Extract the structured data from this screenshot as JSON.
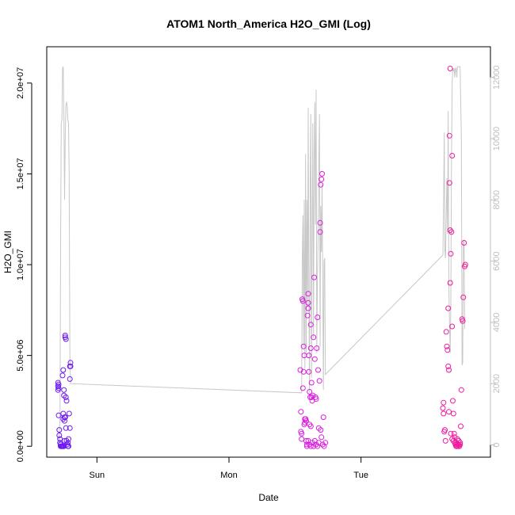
{
  "chart_data": {
    "type": "scatter",
    "title": "ATOM1 North_America H2O_GMI (Log)",
    "xlabel": "Date",
    "ylabel": "H2O_GMI",
    "x_ticks": [
      {
        "label": "Sun",
        "day": 1.0
      },
      {
        "label": "Mon",
        "day": 2.0
      },
      {
        "label": "Tue",
        "day": 3.0
      }
    ],
    "xlim": [
      0.62,
      3.98
    ],
    "ylim": [
      -600000,
      22000000
    ],
    "y_ticks": [
      {
        "value": 0,
        "label": "0.0e+00"
      },
      {
        "value": 5000000,
        "label": "5.0e+06"
      },
      {
        "value": 10000000,
        "label": "1.0e+07"
      },
      {
        "value": 15000000,
        "label": "1.5e+07"
      },
      {
        "value": 20000000,
        "label": "2.0e+07"
      }
    ],
    "y2lim": [
      -400,
      13000
    ],
    "y2_ticks": [
      {
        "value": 0,
        "label": "0"
      },
      {
        "value": 2000,
        "label": "2000"
      },
      {
        "value": 4000,
        "label": "4000"
      },
      {
        "value": 6000,
        "label": "6000"
      },
      {
        "value": 8000,
        "label": "8000"
      },
      {
        "value": 10000,
        "label": "10000"
      },
      {
        "value": 12000,
        "label": "12000"
      }
    ],
    "colors": {
      "line": "#c8c8c8",
      "axis": "#000000",
      "secondary_axis": "#bebebe",
      "point_start": "#6a1af2",
      "point_mid": "#d21ef4",
      "point_end": "#f21a9a"
    },
    "altitude_line": [
      [
        0.71,
        0
      ],
      [
        0.72,
        800
      ],
      [
        0.725,
        6500
      ],
      [
        0.73,
        10500
      ],
      [
        0.735,
        10600
      ],
      [
        0.74,
        12300
      ],
      [
        0.745,
        12350
      ],
      [
        0.75,
        10600
      ],
      [
        0.755,
        8000
      ],
      [
        0.76,
        10000
      ],
      [
        0.765,
        11100
      ],
      [
        0.77,
        11200
      ],
      [
        0.775,
        11050
      ],
      [
        0.78,
        10600
      ],
      [
        0.785,
        10500
      ],
      [
        0.79,
        8800
      ],
      [
        0.795,
        2800
      ],
      [
        0.8,
        2000
      ],
      [
        2.55,
        1700
      ],
      [
        2.555,
        6000
      ],
      [
        2.56,
        7500
      ],
      [
        2.565,
        3200
      ],
      [
        2.57,
        8000
      ],
      [
        2.575,
        2500
      ],
      [
        2.58,
        9500
      ],
      [
        2.585,
        3000
      ],
      [
        2.59,
        8000
      ],
      [
        2.595,
        4500
      ],
      [
        2.6,
        11000
      ],
      [
        2.605,
        5000
      ],
      [
        2.61,
        1700
      ],
      [
        2.615,
        8500
      ],
      [
        2.62,
        10800
      ],
      [
        2.625,
        2200
      ],
      [
        2.63,
        7000
      ],
      [
        2.635,
        10500
      ],
      [
        2.64,
        3500
      ],
      [
        2.645,
        9200
      ],
      [
        2.65,
        11200
      ],
      [
        2.655,
        7200
      ],
      [
        2.66,
        11600
      ],
      [
        2.665,
        3000
      ],
      [
        2.67,
        5500
      ],
      [
        2.675,
        6800
      ],
      [
        2.68,
        9000
      ],
      [
        2.685,
        10800
      ],
      [
        2.69,
        3200
      ],
      [
        2.695,
        7800
      ],
      [
        2.7,
        6300
      ],
      [
        2.705,
        8500
      ],
      [
        2.71,
        5500
      ],
      [
        2.715,
        1800
      ],
      [
        2.72,
        6000
      ],
      [
        2.725,
        6100
      ],
      [
        2.73,
        2300
      ],
      [
        3.62,
        6200
      ],
      [
        3.625,
        7800
      ],
      [
        3.63,
        10200
      ],
      [
        3.635,
        6300
      ],
      [
        3.64,
        6100
      ],
      [
        3.645,
        7500
      ],
      [
        3.65,
        8700
      ],
      [
        3.655,
        6900
      ],
      [
        3.66,
        10900
      ],
      [
        3.665,
        5200
      ],
      [
        3.67,
        4000
      ],
      [
        3.675,
        3000
      ],
      [
        3.68,
        4600
      ],
      [
        3.685,
        9200
      ],
      [
        3.69,
        11800
      ],
      [
        3.695,
        12300
      ],
      [
        3.7,
        12200
      ],
      [
        3.705,
        12300
      ],
      [
        3.71,
        12000
      ],
      [
        3.715,
        12300
      ],
      [
        3.72,
        12300
      ],
      [
        3.725,
        12000
      ],
      [
        3.73,
        12350
      ],
      [
        3.74,
        12350
      ],
      [
        3.75,
        12350
      ],
      [
        3.76,
        10000
      ],
      [
        3.765,
        2600
      ],
      [
        3.77,
        2700
      ],
      [
        3.775,
        6600
      ],
      [
        3.78,
        6700
      ],
      [
        3.785,
        3800
      ]
    ],
    "points": [
      [
        0.705,
        3500000
      ],
      [
        0.705,
        3300000
      ],
      [
        0.705,
        3100000
      ],
      [
        0.71,
        3200000
      ],
      [
        0.71,
        3400000
      ],
      [
        0.71,
        1700000
      ],
      [
        0.715,
        900000
      ],
      [
        0.715,
        600000
      ],
      [
        0.72,
        400000
      ],
      [
        0.72,
        200000
      ],
      [
        0.725,
        100000
      ],
      [
        0.725,
        0
      ],
      [
        0.73,
        0
      ],
      [
        0.735,
        0
      ],
      [
        0.74,
        0
      ],
      [
        0.745,
        0
      ],
      [
        0.75,
        0
      ],
      [
        0.755,
        300000
      ],
      [
        0.74,
        3900000
      ],
      [
        0.745,
        4200000
      ],
      [
        0.745,
        1800000
      ],
      [
        0.75,
        3100000
      ],
      [
        0.75,
        2800000
      ],
      [
        0.755,
        1600000
      ],
      [
        0.755,
        1400000
      ],
      [
        0.76,
        1600000
      ],
      [
        0.76,
        6100000
      ],
      [
        0.76,
        6000000
      ],
      [
        0.765,
        5900000
      ],
      [
        0.765,
        2700000
      ],
      [
        0.77,
        2500000
      ],
      [
        0.765,
        1000000
      ],
      [
        0.77,
        300000
      ],
      [
        0.775,
        100000
      ],
      [
        0.78,
        0
      ],
      [
        0.78,
        200000
      ],
      [
        0.785,
        0
      ],
      [
        0.785,
        400000
      ],
      [
        0.79,
        1800000
      ],
      [
        0.795,
        1000000
      ],
      [
        0.795,
        3700000
      ],
      [
        0.795,
        4400000
      ],
      [
        0.8,
        4600000
      ],
      [
        0.8,
        4400000
      ],
      [
        0.745,
        1500000
      ],
      [
        2.54,
        4200000
      ],
      [
        2.545,
        1900000
      ],
      [
        2.545,
        800000
      ],
      [
        2.55,
        700000
      ],
      [
        2.55,
        400000
      ],
      [
        2.555,
        8100000
      ],
      [
        2.56,
        8000000
      ],
      [
        2.56,
        3200000
      ],
      [
        2.565,
        4100000
      ],
      [
        2.565,
        5500000
      ],
      [
        2.57,
        5000000
      ],
      [
        2.57,
        1200000
      ],
      [
        2.575,
        1500000
      ],
      [
        2.575,
        1300000
      ],
      [
        2.58,
        1500000
      ],
      [
        2.585,
        1400000
      ],
      [
        2.585,
        300000
      ],
      [
        2.59,
        100000
      ],
      [
        2.59,
        0
      ],
      [
        2.595,
        7200000
      ],
      [
        2.6,
        7600000
      ],
      [
        2.6,
        8400000
      ],
      [
        2.6,
        7900000
      ],
      [
        2.605,
        5000000
      ],
      [
        2.605,
        4100000
      ],
      [
        2.61,
        3000000
      ],
      [
        2.61,
        1200000
      ],
      [
        2.615,
        2700000
      ],
      [
        2.62,
        6700000
      ],
      [
        2.62,
        5400000
      ],
      [
        2.625,
        3500000
      ],
      [
        2.625,
        2700000
      ],
      [
        2.63,
        2500000
      ],
      [
        2.635,
        2800000
      ],
      [
        2.64,
        6000000
      ],
      [
        2.645,
        9300000
      ],
      [
        2.65,
        4800000
      ],
      [
        2.655,
        2700000
      ],
      [
        2.66,
        2600000
      ],
      [
        2.665,
        5400000
      ],
      [
        2.67,
        7100000
      ],
      [
        2.675,
        4200000
      ],
      [
        2.68,
        1000000
      ],
      [
        2.685,
        3600000
      ],
      [
        2.69,
        11800000
      ],
      [
        2.69,
        12300000
      ],
      [
        2.695,
        14400000
      ],
      [
        2.7,
        14700000
      ],
      [
        2.705,
        15000000
      ],
      [
        2.715,
        1600000
      ],
      [
        2.6,
        300000
      ],
      [
        2.61,
        100000
      ],
      [
        2.62,
        0
      ],
      [
        2.63,
        200000
      ],
      [
        2.64,
        0
      ],
      [
        2.65,
        300000
      ],
      [
        2.66,
        100000
      ],
      [
        2.67,
        0
      ],
      [
        2.68,
        200000
      ],
      [
        2.695,
        900000
      ],
      [
        2.7,
        500000
      ],
      [
        2.71,
        100000
      ],
      [
        2.72,
        0
      ],
      [
        2.73,
        200000
      ],
      [
        2.62,
        1100000
      ],
      [
        3.62,
        2100000
      ],
      [
        3.625,
        1800000
      ],
      [
        3.625,
        2400000
      ],
      [
        3.63,
        800000
      ],
      [
        3.635,
        900000
      ],
      [
        3.64,
        300000
      ],
      [
        3.645,
        6300000
      ],
      [
        3.65,
        5500000
      ],
      [
        3.655,
        5300000
      ],
      [
        3.66,
        4400000
      ],
      [
        3.665,
        4200000
      ],
      [
        3.665,
        1900000
      ],
      [
        3.67,
        17100000
      ],
      [
        3.67,
        14500000
      ],
      [
        3.675,
        11900000
      ],
      [
        3.675,
        9000000
      ],
      [
        3.68,
        10600000
      ],
      [
        3.685,
        11800000
      ],
      [
        3.69,
        16000000
      ],
      [
        3.69,
        6600000
      ],
      [
        3.695,
        2500000
      ],
      [
        3.7,
        1800000
      ],
      [
        3.705,
        700000
      ],
      [
        3.71,
        200000
      ],
      [
        3.715,
        100000
      ],
      [
        3.72,
        0
      ],
      [
        3.725,
        0
      ],
      [
        3.73,
        100000
      ],
      [
        3.735,
        0
      ],
      [
        3.74,
        100000
      ],
      [
        3.745,
        0
      ],
      [
        3.75,
        200000
      ],
      [
        3.755,
        1100000
      ],
      [
        3.76,
        3100000
      ],
      [
        3.765,
        7000000
      ],
      [
        3.77,
        6900000
      ],
      [
        3.775,
        8200000
      ],
      [
        3.78,
        11200000
      ],
      [
        3.785,
        9900000
      ],
      [
        3.79,
        10000000
      ],
      [
        3.66,
        7600000
      ],
      [
        3.675,
        20800000
      ],
      [
        3.68,
        700000
      ],
      [
        3.69,
        400000
      ],
      [
        3.7,
        300000
      ],
      [
        3.71,
        500000
      ],
      [
        3.72,
        200000
      ],
      [
        3.73,
        400000
      ],
      [
        3.74,
        300000
      ],
      [
        3.75,
        100000
      ]
    ]
  }
}
